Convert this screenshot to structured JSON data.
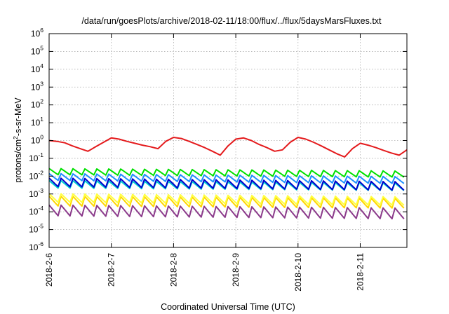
{
  "chart_data": {
    "type": "line",
    "title": "/data/run/goesPlots/archive/2018-02-11/18:00/flux/../flux/5daysMarsFluxes.txt",
    "xlabel": "Coordinated Universal Time (UTC)",
    "ylabel": {
      "prefix": "protons/cm",
      "sup": "2",
      "suffix": "-s-sr-MeV"
    },
    "yscale": "log",
    "ylim": [
      1e-06,
      1000000.0
    ],
    "xlim": [
      "2018-02-06 00:00",
      "2018-02-11 18:00"
    ],
    "yticks": [
      {
        "base": "10",
        "exp": "-6"
      },
      {
        "base": "10",
        "exp": "-5"
      },
      {
        "base": "10",
        "exp": "-4"
      },
      {
        "base": "10",
        "exp": "-3"
      },
      {
        "base": "10",
        "exp": "-2"
      },
      {
        "base": "10",
        "exp": "-1"
      },
      {
        "base": "10",
        "exp": "0"
      },
      {
        "base": "10",
        "exp": "1"
      },
      {
        "base": "10",
        "exp": "2"
      },
      {
        "base": "10",
        "exp": "3"
      },
      {
        "base": "10",
        "exp": "4"
      },
      {
        "base": "10",
        "exp": "5"
      },
      {
        "base": "10",
        "exp": "6"
      }
    ],
    "xticks": [
      "2018-2-6",
      "2018-2-7",
      "2018-2-8",
      "2018-2-9",
      "2018-2-10",
      "2018-2-11"
    ],
    "grid": true,
    "legend": "none",
    "series": [
      {
        "color": "#e41a1c",
        "x": [
          "2018-02-06 00:00",
          "2018-02-06 03:00",
          "2018-02-06 06:00",
          "2018-02-06 09:00",
          "2018-02-06 12:00",
          "2018-02-06 15:00",
          "2018-02-06 18:00",
          "2018-02-06 21:00",
          "2018-02-07 00:00",
          "2018-02-07 03:00",
          "2018-02-07 06:00",
          "2018-02-07 09:00",
          "2018-02-07 12:00",
          "2018-02-07 15:00",
          "2018-02-07 18:00",
          "2018-02-07 21:00",
          "2018-02-08 00:00",
          "2018-02-08 03:00",
          "2018-02-08 06:00",
          "2018-02-08 09:00",
          "2018-02-08 12:00",
          "2018-02-08 15:00",
          "2018-02-08 18:00",
          "2018-02-08 21:00",
          "2018-02-09 00:00",
          "2018-02-09 03:00",
          "2018-02-09 06:00",
          "2018-02-09 09:00",
          "2018-02-09 12:00",
          "2018-02-09 15:00",
          "2018-02-09 18:00",
          "2018-02-09 21:00",
          "2018-02-10 00:00",
          "2018-02-10 03:00",
          "2018-02-10 06:00",
          "2018-02-10 09:00",
          "2018-02-10 12:00",
          "2018-02-10 15:00",
          "2018-02-10 18:00",
          "2018-02-10 21:00",
          "2018-02-11 00:00",
          "2018-02-11 03:00",
          "2018-02-11 06:00",
          "2018-02-11 09:00",
          "2018-02-11 12:00",
          "2018-02-11 15:00",
          "2018-02-11 18:00"
        ],
        "y": [
          1.0,
          0.9,
          0.75,
          0.5,
          0.35,
          0.25,
          0.45,
          0.8,
          1.4,
          1.2,
          0.9,
          0.7,
          0.55,
          0.45,
          0.35,
          0.9,
          1.5,
          1.3,
          0.9,
          0.6,
          0.4,
          0.25,
          0.15,
          0.5,
          1.2,
          1.4,
          1.0,
          0.6,
          0.4,
          0.25,
          0.3,
          0.8,
          1.5,
          1.2,
          0.8,
          0.5,
          0.3,
          0.18,
          0.12,
          0.35,
          0.7,
          0.55,
          0.4,
          0.28,
          0.2,
          0.15,
          0.3
        ]
      },
      {
        "color": "#00e000",
        "x": [
          "2018-02-06 00:00",
          "2018-02-11 18:00"
        ],
        "y": [
          0.018,
          0.013
        ],
        "oscillation": {
          "cycles": 30,
          "amplitude_ratio": 2.2
        }
      },
      {
        "color": "#1e90ff",
        "x": [
          "2018-02-06 00:00",
          "2018-02-11 18:00"
        ],
        "y": [
          0.009,
          0.006
        ],
        "oscillation": {
          "cycles": 30,
          "amplitude_ratio": 2.4
        }
      },
      {
        "color": "#00cfcf",
        "x": [
          "2018-02-06 00:00",
          "2018-02-11 18:00"
        ],
        "y": [
          0.0035,
          0.0025
        ],
        "oscillation": {
          "cycles": 30,
          "amplitude_ratio": 2.6
        }
      },
      {
        "color": "#0000cd",
        "x": [
          "2018-02-06 00:00",
          "2018-02-11 18:00"
        ],
        "y": [
          0.0045,
          0.0028
        ],
        "oscillation": {
          "cycles": 30,
          "amplitude_ratio": 3.0
        }
      },
      {
        "color": "#ffd700",
        "x": [
          "2018-02-06 00:00",
          "2018-02-11 18:00"
        ],
        "y": [
          0.0004,
          0.0003
        ],
        "oscillation": {
          "cycles": 30,
          "amplitude_ratio": 3.5
        }
      },
      {
        "color": "#ffff40",
        "x": [
          "2018-02-06 00:00",
          "2018-02-11 18:00"
        ],
        "y": [
          0.0006,
          0.0004
        ],
        "oscillation": {
          "cycles": 30,
          "amplitude_ratio": 3.0
        }
      },
      {
        "color": "#8b3a8b",
        "x": [
          "2018-02-06 00:00",
          "2018-02-11 18:00"
        ],
        "y": [
          0.00012,
          8e-05
        ],
        "oscillation": {
          "cycles": 30,
          "amplitude_ratio": 4.0
        }
      }
    ]
  }
}
